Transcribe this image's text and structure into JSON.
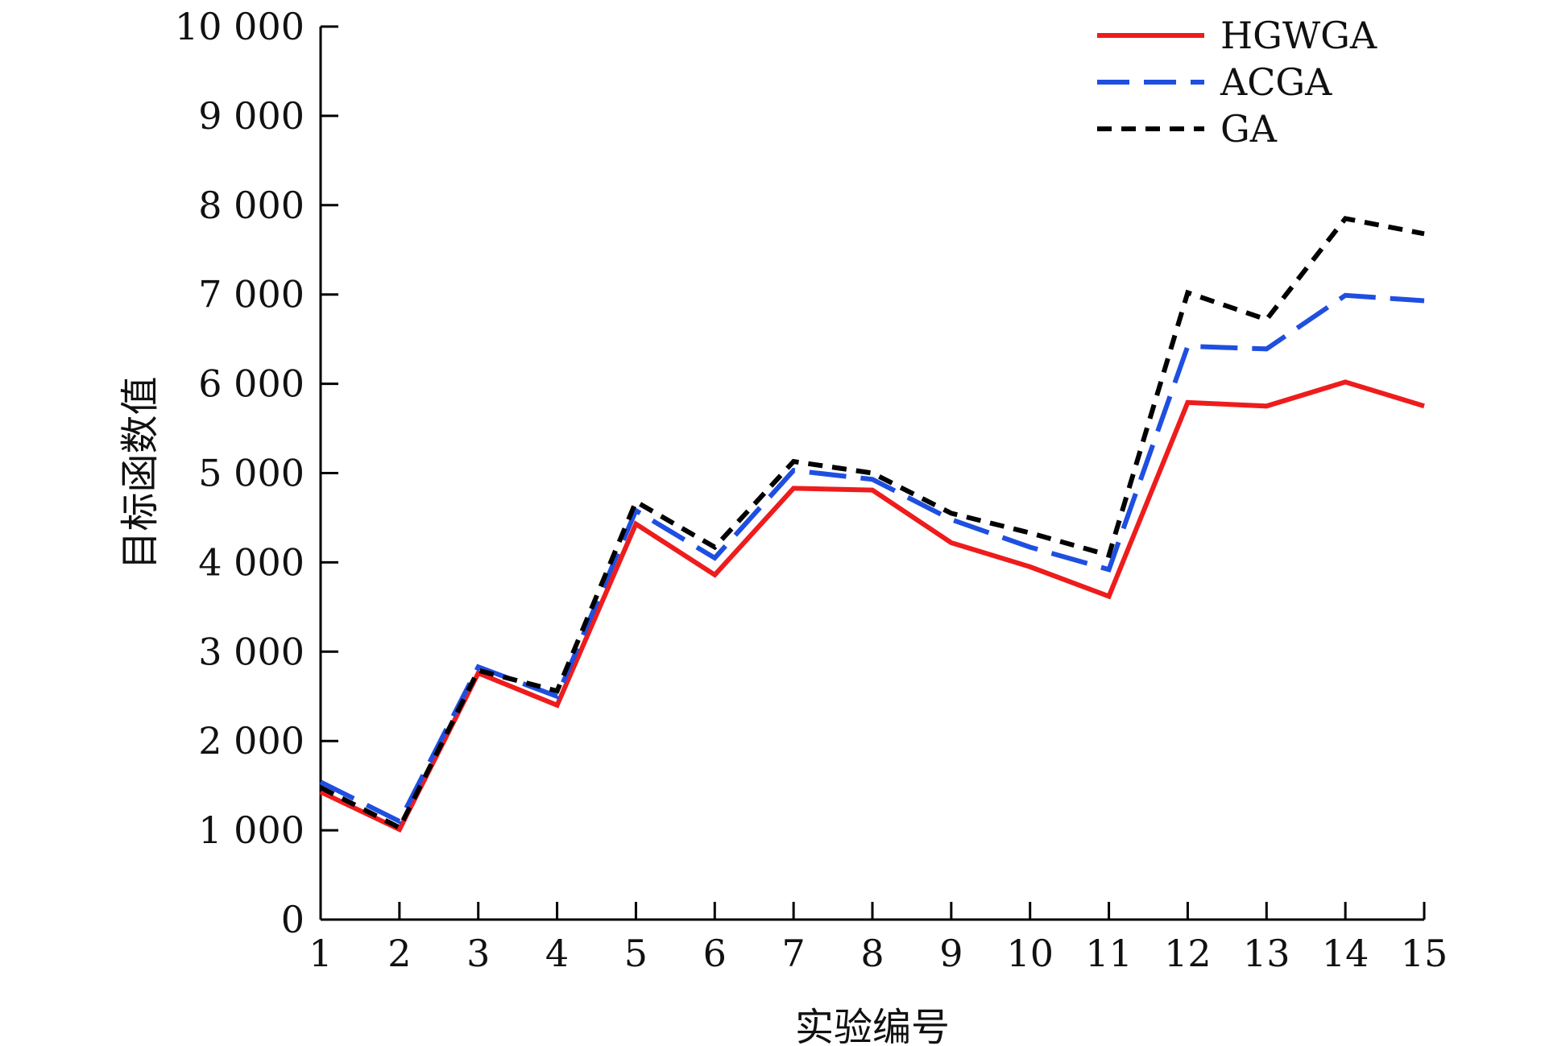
{
  "chart_data": {
    "type": "line",
    "xlabel": "实验编号",
    "ylabel": "目标函数值",
    "x": [
      1,
      2,
      3,
      4,
      5,
      6,
      7,
      8,
      9,
      10,
      11,
      12,
      13,
      14,
      15
    ],
    "xlim": [
      1,
      15
    ],
    "ylim": [
      0,
      10000
    ],
    "yticks": [
      0,
      1000,
      2000,
      3000,
      4000,
      5000,
      6000,
      7000,
      8000,
      9000,
      10000
    ],
    "ytick_labels": [
      "0",
      "1 000",
      "2 000",
      "3 000",
      "4 000",
      "5 000",
      "6 000",
      "7 000",
      "8 000",
      "9 000",
      "10 000"
    ],
    "xtick_labels": [
      "1",
      "2",
      "3",
      "4",
      "5",
      "6",
      "7",
      "8",
      "9",
      "10",
      "11",
      "12",
      "13",
      "14",
      "15"
    ],
    "grid": false,
    "legend_position": "top-right",
    "series": [
      {
        "name": "HGWGA",
        "color": "#ee1c1c",
        "style": "solid",
        "values": [
          1430,
          1010,
          2760,
          2400,
          4430,
          3860,
          4830,
          4810,
          4220,
          3950,
          3620,
          5790,
          5750,
          6020,
          5750
        ]
      },
      {
        "name": "ACGA",
        "color": "#1f4fe0",
        "style": "long-dash",
        "values": [
          1540,
          1100,
          2830,
          2500,
          4580,
          4050,
          5030,
          4930,
          4480,
          4170,
          3920,
          6420,
          6390,
          6990,
          6930
        ]
      },
      {
        "name": "GA",
        "color": "#000000",
        "style": "short-dash",
        "values": [
          1480,
          1030,
          2790,
          2560,
          4680,
          4170,
          5130,
          5000,
          4550,
          4330,
          4080,
          7020,
          6720,
          7850,
          7680
        ]
      }
    ]
  }
}
